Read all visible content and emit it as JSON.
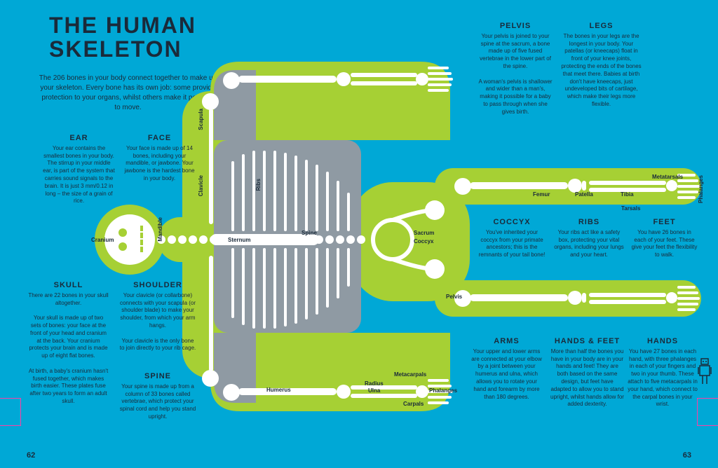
{
  "title_line1": "THE HUMAN",
  "title_line2": "SKELETON",
  "intro": "The 206 bones in your body connect together to make up your skeleton. Every bone has its own job: some provide protection to your organs, whilst others make it possible to move.",
  "page_left": "62",
  "page_right": "63",
  "colors": {
    "bg": "#00a8d6",
    "green": "#a6d034",
    "grey": "#8f9aa3",
    "white": "#ffffff",
    "text": "#1a2a3a",
    "pink": "#ff3ea5"
  },
  "blocks": {
    "ear": {
      "title": "EAR",
      "body": "Your ear contains the smallest bones in your body. The stirrup in your middle ear, is part of the system that carries sound signals to the brain. It is just 3 mm/0.12 in long – the size of a grain of rice."
    },
    "face": {
      "title": "FACE",
      "body": "Your face is made up of 14 bones, including your mandible, or jawbone. Your jawbone is the hardest bone in your body."
    },
    "skull": {
      "title": "SKULL",
      "body": "There are 22 bones in your skull altogether.<br><br>Your skull is made up of two sets of bones: your face at the front of your head and cranium at the back. Your cranium protects your brain and is made up of eight flat bones.<br><br>At birth, a baby's cranium hasn't fused together, which makes birth easier. These plates fuse after two years to form an adult skull."
    },
    "shoulder": {
      "title": "SHOULDER",
      "body": "Your clavicle (or collarbone) connects with your scapula (or shoulder blade) to make your shoulder, from which your arm hangs.<br><br>Your clavicle is the only bone to join directly to your rib cage."
    },
    "spine": {
      "title": "SPINE",
      "body": "Your spine is made up from a column of 33 bones called vertebrae, which protect your spinal cord and help you stand upright."
    },
    "pelvis": {
      "title": "PELVIS",
      "body": "Your pelvis is joined to your spine at the sacrum, a bone made up of five fused vertebrae in the lower part of the spine.<br><br>A woman's pelvis is shallower and wider than a man's, making it possible for a baby to pass through when she gives birth."
    },
    "legs": {
      "title": "LEGS",
      "body": "The bones in your legs are the longest in your body. Your patellas (or kneecaps) float in front of your knee joints, protecting the ends of the bones that meet there. Babies at birth don't have kneecaps, just undeveloped bits of cartilage, which make their legs more flexible."
    },
    "coccyx": {
      "title": "COCCYX",
      "body": "You've inherited your coccyx from your primate ancestors; this is the remnants of your tail bone!"
    },
    "ribs": {
      "title": "RIBS",
      "body": "Your ribs act like a safety box, protecting your vital organs, including your lungs and your heart."
    },
    "feet": {
      "title": "FEET",
      "body": "You have 26 bones in each of your feet. These give your feet the flexibility to walk."
    },
    "arms": {
      "title": "ARMS",
      "body": "Your upper and lower arms are connected at your elbow by a joint between your humerus and ulna, which allows you to rotate your hand and forearm by more than 180 degrees."
    },
    "handsfeet": {
      "title": "HANDS & FEET",
      "body": "More than half the bones you have in your body are in your hands and feet! They are both based on the same design, but feet have adapted to allow you to stand upright, whilst hands allow for added dexterity."
    },
    "hands": {
      "title": "HANDS",
      "body": "You have 27 bones in each hand, with three phalanges in each of your fingers and two in your thumb. These attach to five metacarpals in your hand, which connect to the carpal bones in your wrist."
    }
  },
  "labels": {
    "cranium": "Cranium",
    "mandible": "Mandible",
    "clavicle": "Clavicle",
    "scapula": "Scapula",
    "ribs": "Ribs",
    "spine": "Spine",
    "sternum": "Sternum",
    "humerus": "Humerus",
    "radius": "Radius",
    "ulna": "Ulna",
    "carpals": "Carpals",
    "metacarpals": "Metacarpals",
    "phalanges": "Phalanges",
    "sacrum": "Sacrum",
    "coccyx": "Coccyx",
    "pelvis": "Pelvis",
    "femur": "Femur",
    "patella": "Patella",
    "tibia": "Tibia",
    "tarsals": "Tarsals",
    "metatarsals": "Metatarsals",
    "phalanges2": "Phalanges"
  }
}
